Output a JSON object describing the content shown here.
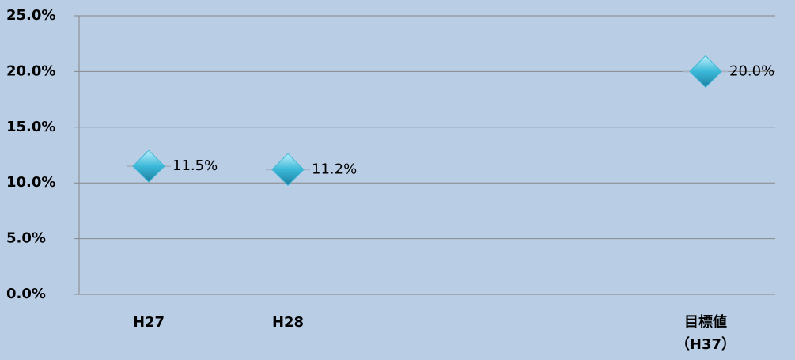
{
  "chart_data": {
    "type": "scatter",
    "categories": [
      "H27",
      "H28",
      null,
      null,
      "目標値\n（H37）"
    ],
    "values": [
      11.5,
      11.2,
      null,
      null,
      20.0
    ],
    "value_labels": [
      "11.5%",
      "11.2%",
      null,
      null,
      "20.0%"
    ],
    "color": "#3bb8d8",
    "marker": "diamond",
    "ylim": [
      0,
      25
    ],
    "yticks": [
      {
        "value": 0,
        "label": "0.0%"
      },
      {
        "value": 5,
        "label": "5.0%"
      },
      {
        "value": 10,
        "label": "10.0%"
      },
      {
        "value": 15,
        "label": "15.0%"
      },
      {
        "value": 20,
        "label": "20.0%"
      },
      {
        "value": 25,
        "label": "25.0%"
      }
    ],
    "grid": true
  }
}
